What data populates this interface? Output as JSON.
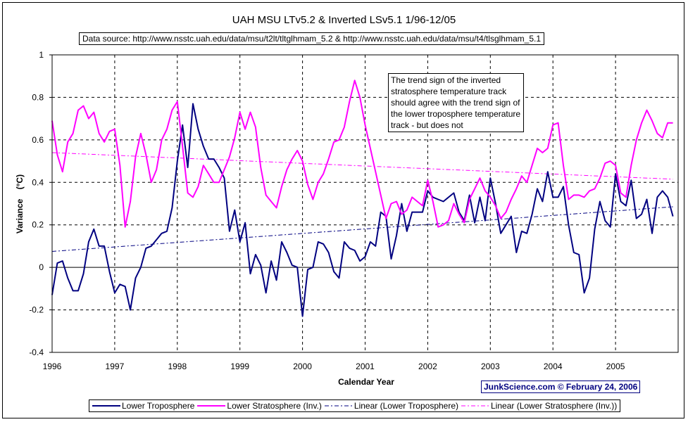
{
  "chart_data": {
    "type": "line",
    "title": "UAH MSU LTv5.2 & Inverted LSv5.1 1/96-12/05",
    "subtitle": "Data source: http://www.nsstc.uah.edu/data/msu/t2lt/tltglhmam_5.2 & http://www.nsstc.uah.edu/data/msu/t4/tlsglhmam_5.1",
    "xlabel": "Calendar Year",
    "ylabel": "Variance    (°C)",
    "xlim": [
      1996,
      2006
    ],
    "ylim": [
      -0.4,
      1.0
    ],
    "x_ticks": [
      "1996",
      "1997",
      "1998",
      "1999",
      "2000",
      "2001",
      "2002",
      "2003",
      "2004",
      "2005"
    ],
    "y_ticks": [
      "-0.4",
      "-0.2",
      "0",
      "0.2",
      "0.4",
      "0.6",
      "0.8",
      "1"
    ],
    "grid": true,
    "legend_position": "bottom",
    "annotation": "The trend sign of the inverted stratosphere temperature track should agree with the trend sign of the lower troposphere temperature track - but does not",
    "credit": "JunkScience.com © February 24, 2006",
    "x_start": 1996.0,
    "x_step_months": 1,
    "series": [
      {
        "name": "Lower Troposphere",
        "color": "#000080",
        "style": "solid",
        "values": [
          -0.13,
          0.02,
          0.03,
          -0.05,
          -0.11,
          -0.11,
          -0.03,
          0.12,
          0.18,
          0.1,
          0.1,
          -0.02,
          -0.12,
          -0.08,
          -0.09,
          -0.2,
          -0.05,
          0.0,
          0.09,
          0.1,
          0.13,
          0.16,
          0.17,
          0.28,
          0.5,
          0.67,
          0.47,
          0.77,
          0.65,
          0.57,
          0.51,
          0.51,
          0.47,
          0.42,
          0.17,
          0.27,
          0.12,
          0.21,
          -0.03,
          0.06,
          0.01,
          -0.12,
          0.03,
          -0.06,
          0.12,
          0.07,
          0.01,
          0.0,
          -0.23,
          -0.01,
          0.0,
          0.12,
          0.11,
          0.07,
          -0.02,
          -0.05,
          0.12,
          0.09,
          0.08,
          0.03,
          0.05,
          0.12,
          0.1,
          0.26,
          0.24,
          0.04,
          0.15,
          0.3,
          0.17,
          0.26,
          0.26,
          0.26,
          0.36,
          0.33,
          0.32,
          0.31,
          0.33,
          0.35,
          0.26,
          0.22,
          0.34,
          0.21,
          0.33,
          0.22,
          0.42,
          0.3,
          0.16,
          0.2,
          0.24,
          0.07,
          0.17,
          0.16,
          0.25,
          0.37,
          0.31,
          0.45,
          0.33,
          0.33,
          0.38,
          0.2,
          0.07,
          0.06,
          -0.12,
          -0.05,
          0.18,
          0.31,
          0.22,
          0.19,
          0.44,
          0.31,
          0.29,
          0.41,
          0.23,
          0.25,
          0.32,
          0.16,
          0.33,
          0.36,
          0.33,
          0.24
        ]
      },
      {
        "name": "Lower Stratosphere (Inv.)",
        "color": "#ff00ff",
        "style": "solid",
        "values": [
          0.69,
          0.53,
          0.45,
          0.59,
          0.63,
          0.74,
          0.76,
          0.7,
          0.73,
          0.63,
          0.59,
          0.64,
          0.65,
          0.48,
          0.19,
          0.31,
          0.52,
          0.63,
          0.53,
          0.4,
          0.46,
          0.6,
          0.65,
          0.74,
          0.78,
          0.57,
          0.35,
          0.33,
          0.38,
          0.48,
          0.44,
          0.4,
          0.4,
          0.46,
          0.52,
          0.61,
          0.73,
          0.65,
          0.73,
          0.66,
          0.47,
          0.34,
          0.31,
          0.28,
          0.38,
          0.46,
          0.51,
          0.55,
          0.5,
          0.39,
          0.32,
          0.4,
          0.44,
          0.51,
          0.59,
          0.6,
          0.66,
          0.78,
          0.88,
          0.8,
          0.67,
          0.56,
          0.45,
          0.34,
          0.23,
          0.3,
          0.31,
          0.25,
          0.27,
          0.33,
          0.31,
          0.29,
          0.41,
          0.31,
          0.19,
          0.2,
          0.22,
          0.3,
          0.25,
          0.21,
          0.32,
          0.37,
          0.42,
          0.36,
          0.33,
          0.29,
          0.23,
          0.26,
          0.32,
          0.37,
          0.43,
          0.4,
          0.48,
          0.56,
          0.54,
          0.56,
          0.67,
          0.68,
          0.48,
          0.32,
          0.34,
          0.34,
          0.33,
          0.36,
          0.37,
          0.42,
          0.49,
          0.5,
          0.48,
          0.35,
          0.33,
          0.48,
          0.6,
          0.68,
          0.74,
          0.69,
          0.63,
          0.61,
          0.68,
          0.68
        ]
      },
      {
        "name": "Linear (Lower Troposphere)",
        "color": "#000080",
        "style": "dash-dot",
        "start_value": 0.075,
        "end_value": 0.285
      },
      {
        "name": "Linear (Lower Stratosphere (Inv.))",
        "color": "#ff00ff",
        "style": "dash-dot",
        "start_value": 0.54,
        "end_value": 0.415
      }
    ]
  }
}
